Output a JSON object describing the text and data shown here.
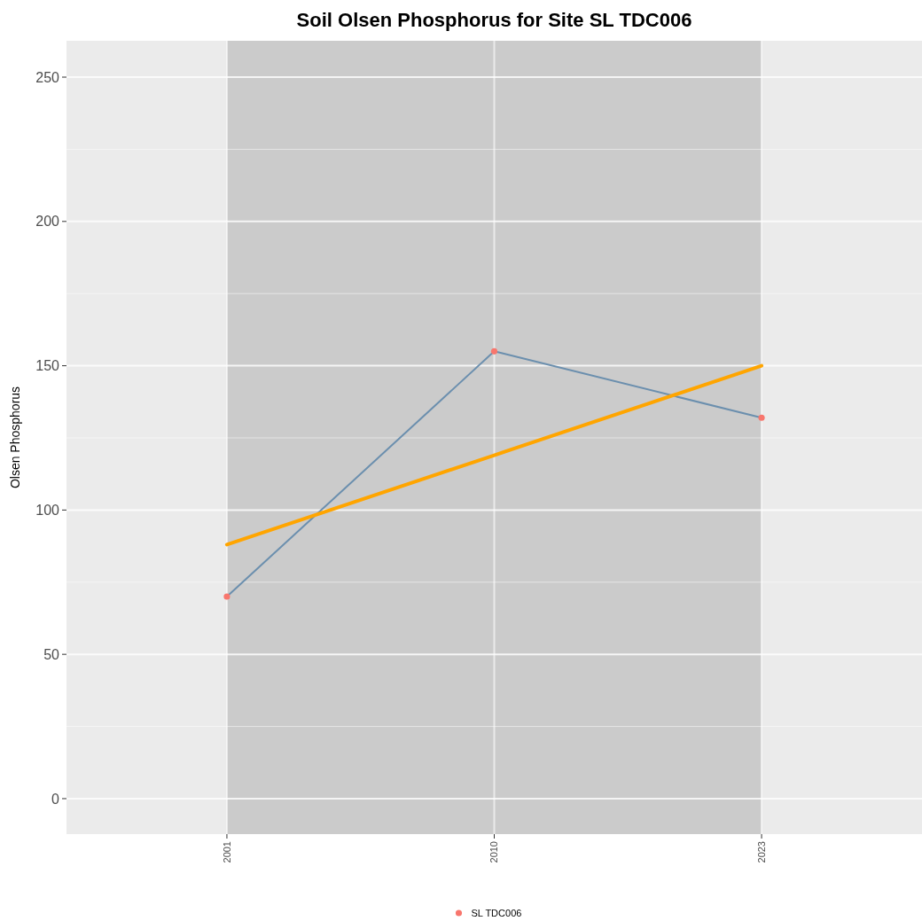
{
  "chart_data": {
    "type": "line",
    "title": "Soil Olsen Phosphorus for Site SL TDC006",
    "ylabel": "Olsen Phosphorus",
    "categories": [
      "2001",
      "2010",
      "2023"
    ],
    "ylim": [
      -12.3,
      262.6
    ],
    "yticks": [
      0,
      50,
      100,
      150,
      200,
      250
    ],
    "grid": true,
    "legend": "bottom",
    "bands": [
      {
        "axis": "x",
        "from": "2001",
        "to": "2023",
        "color": "#cbcbcb"
      }
    ],
    "series": [
      {
        "color": "#6b8fae",
        "values": [
          70,
          155,
          132
        ]
      },
      {
        "color": "#ffa500",
        "values": [
          88,
          119,
          150
        ]
      },
      {
        "type": "scatter",
        "name": "SL TDC006",
        "color": "#f8766d",
        "values": [
          70,
          155,
          132
        ],
        "marker": "circle"
      }
    ]
  }
}
